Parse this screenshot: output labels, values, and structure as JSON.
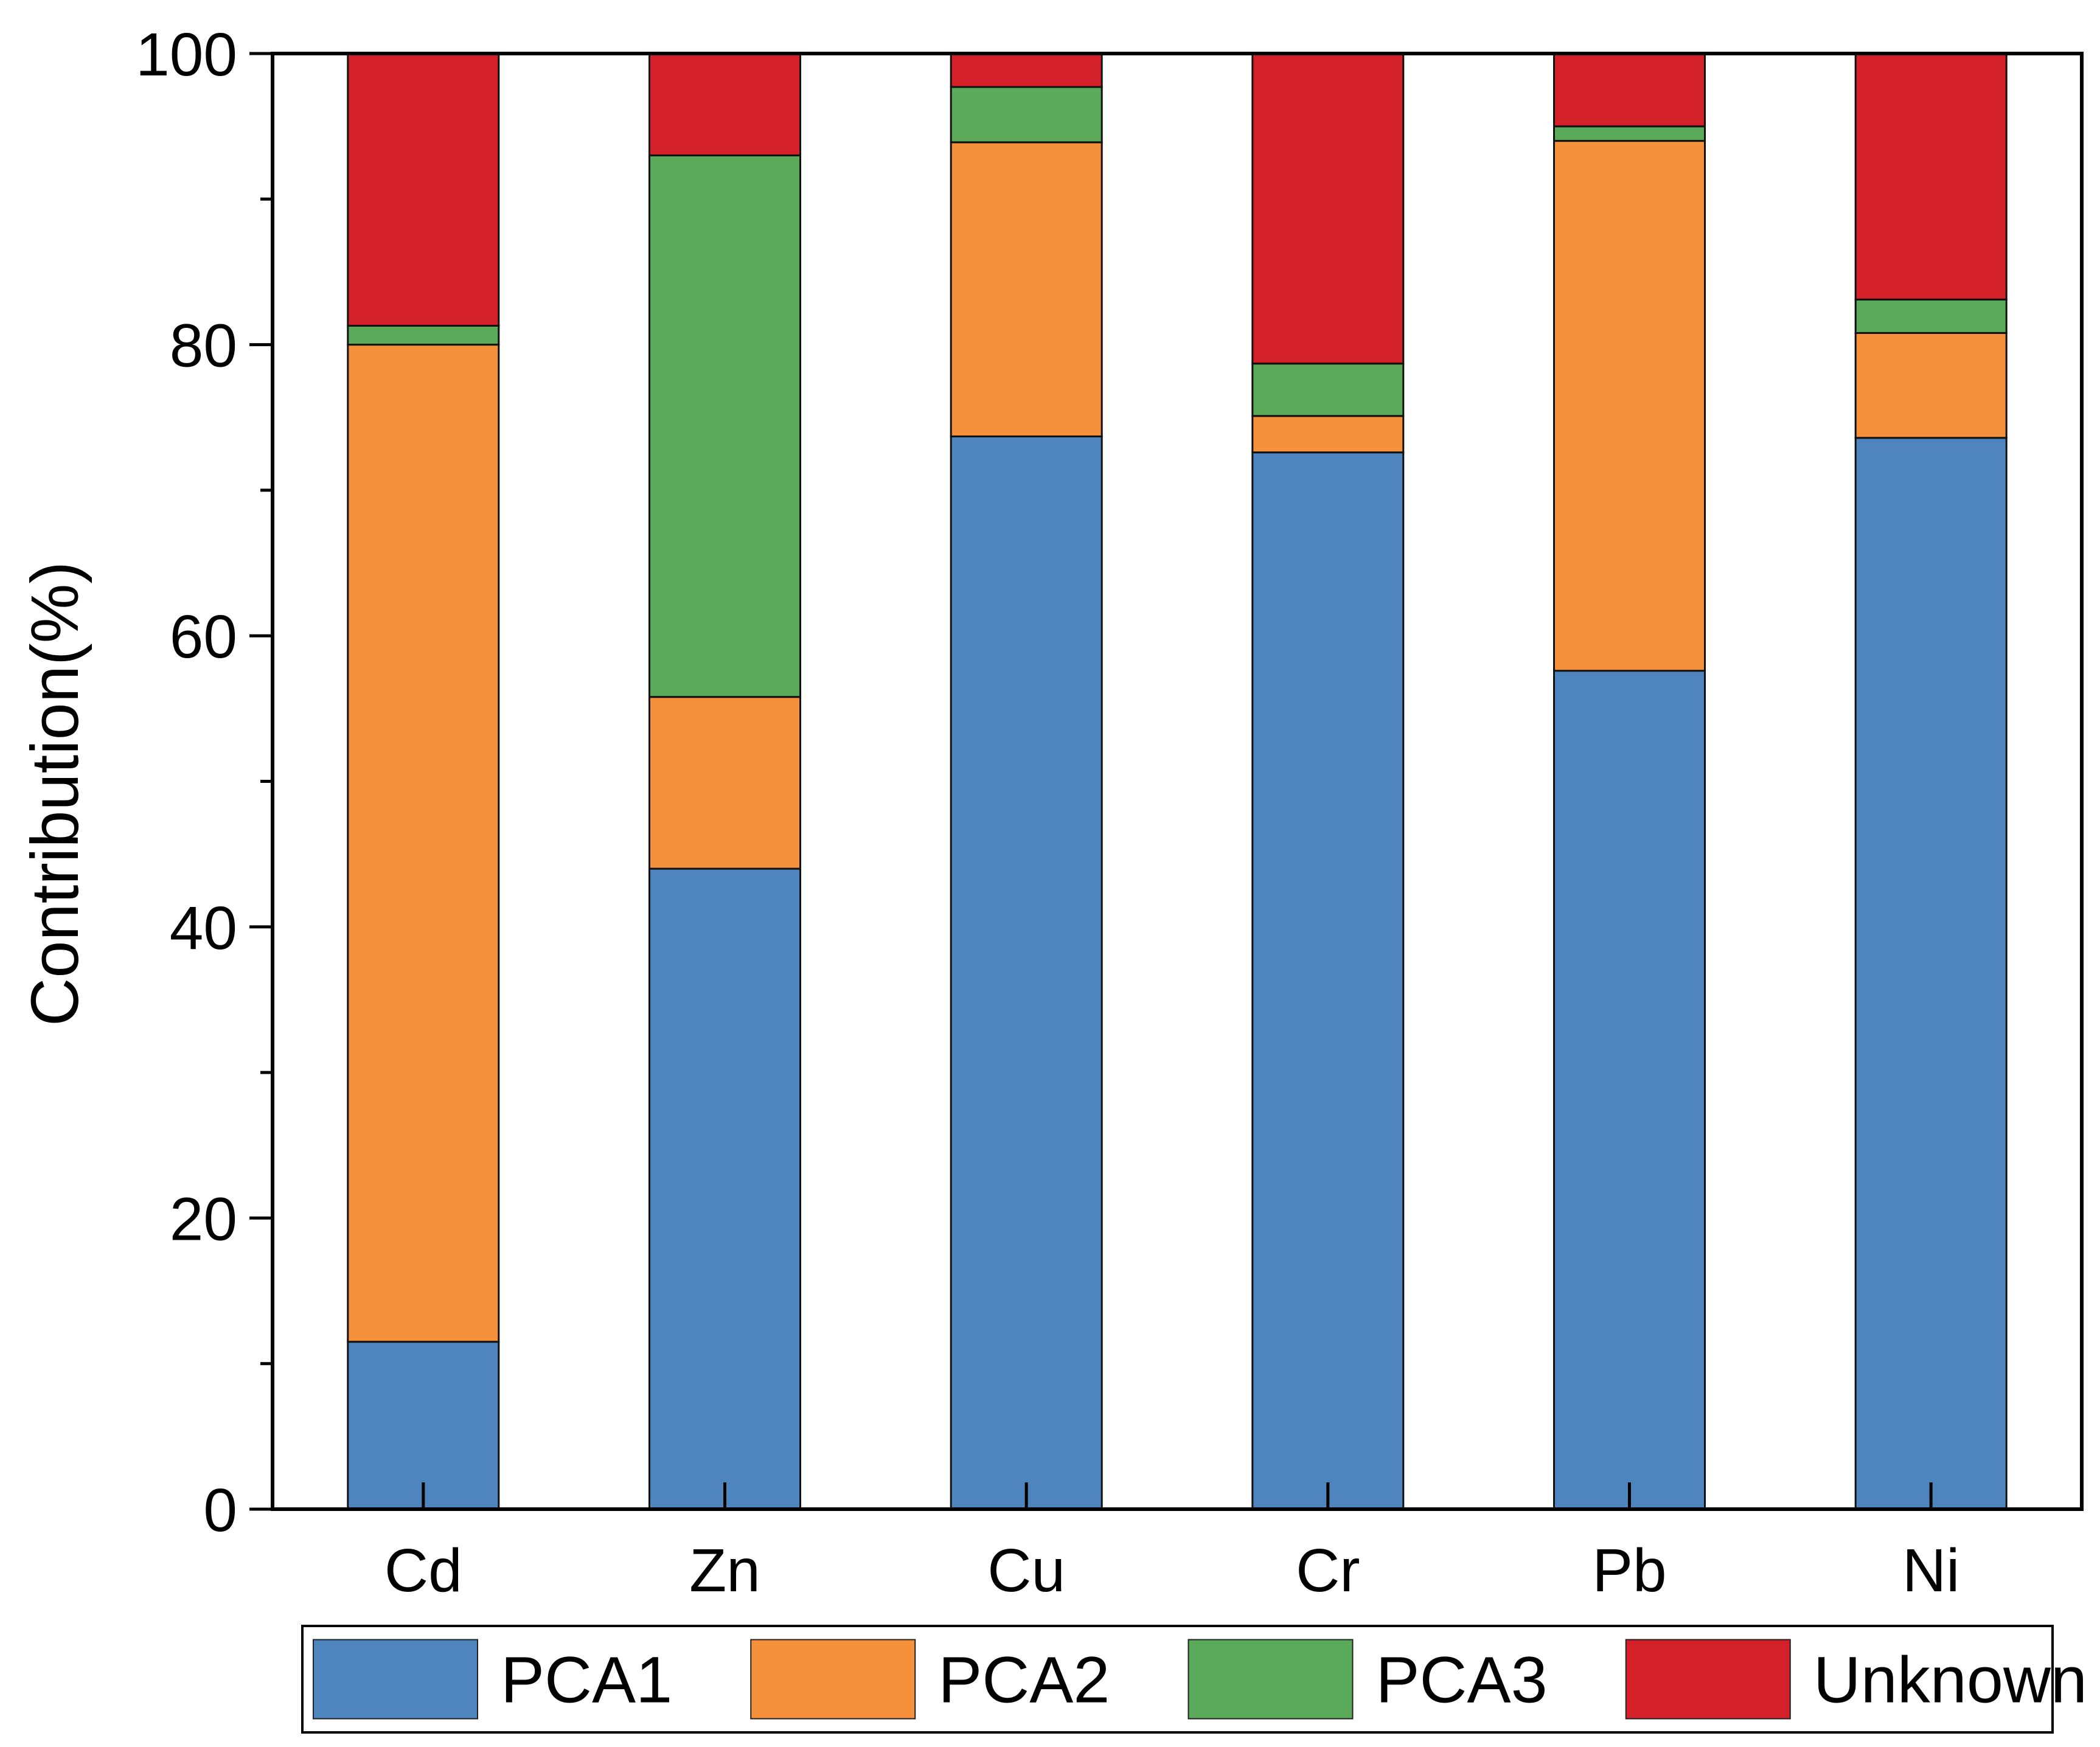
{
  "chart_data": {
    "type": "bar",
    "stacked": true,
    "title": "",
    "xlabel": "",
    "ylabel": "Contribution(%)",
    "ylim": [
      0,
      100
    ],
    "yticks": [
      0,
      20,
      40,
      60,
      80,
      100
    ],
    "y_minor_step": 10,
    "grid": false,
    "legend_position": "bottom",
    "categories": [
      "Cd",
      "Zn",
      "Cu",
      "Cr",
      "Pb",
      "Ni"
    ],
    "series": [
      {
        "name": "PCA1",
        "color": "#4f85be",
        "values": [
          11.5,
          44.0,
          73.7,
          72.6,
          57.6,
          73.6
        ]
      },
      {
        "name": "PCA2",
        "color": "#f6913b",
        "values": [
          68.5,
          11.8,
          20.2,
          2.5,
          36.4,
          7.2
        ]
      },
      {
        "name": "PCA3",
        "color": "#5aaa5a",
        "values": [
          1.3,
          37.2,
          3.8,
          3.6,
          1.0,
          2.3
        ]
      },
      {
        "name": "Unknown",
        "color": "#d42029",
        "values": [
          18.7,
          7.0,
          2.3,
          21.3,
          5.0,
          16.9
        ]
      }
    ]
  }
}
